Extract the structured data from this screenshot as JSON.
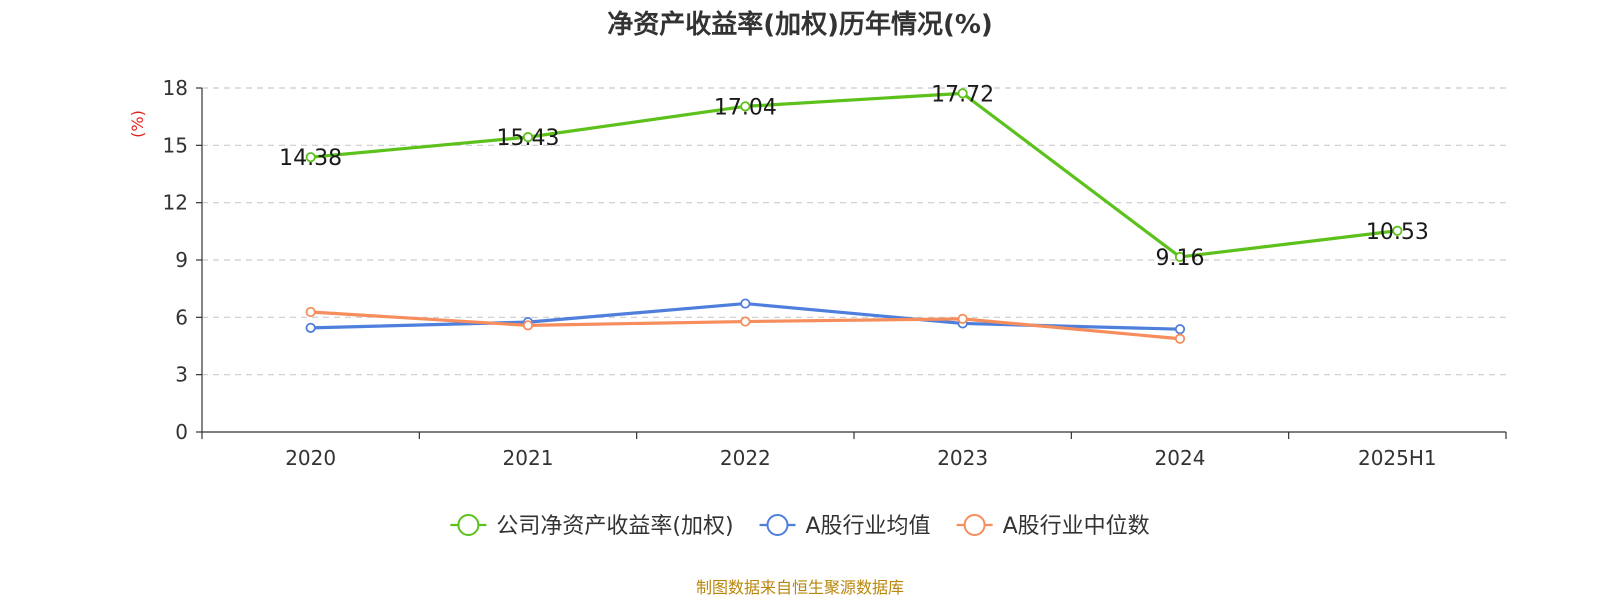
{
  "chart_data": {
    "type": "line",
    "title": "净资产收益率(加权)历年情况(%)",
    "ylabel": "(%)",
    "categories": [
      "2020",
      "2021",
      "2022",
      "2023",
      "2024",
      "2025H1"
    ],
    "ylim": [
      0,
      18
    ],
    "yticks": [
      0,
      3,
      6,
      9,
      12,
      15,
      18
    ],
    "grid": true,
    "legend_position": "bottom-center",
    "series": [
      {
        "name": "公司净资产收益率(加权)",
        "color": "#5dc11c",
        "values": [
          14.38,
          15.43,
          17.04,
          17.72,
          9.16,
          10.53
        ],
        "labels": [
          "14.38",
          "15.43",
          "17.04",
          "17.72",
          "9.16",
          "10.53"
        ]
      },
      {
        "name": "A股行业均值",
        "color": "#4e7fdc",
        "values": [
          5.45,
          5.75,
          6.72,
          5.68,
          5.38,
          null
        ]
      },
      {
        "name": "A股行业中位数",
        "color": "#f58d5c",
        "values": [
          6.28,
          5.58,
          5.78,
          5.92,
          4.88,
          null
        ]
      }
    ]
  },
  "source": "制图数据来自恒生聚源数据库"
}
